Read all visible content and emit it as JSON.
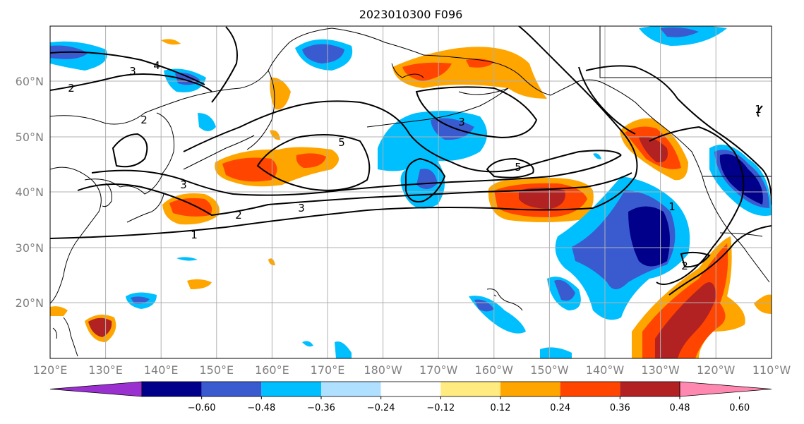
{
  "title": "2023010300 F096",
  "x_ticks": [
    "120°E",
    "130°E",
    "140°E",
    "150°E",
    "160°E",
    "170°E",
    "180°W",
    "170°W",
    "160°W",
    "150°W",
    "140°W",
    "130°W",
    "120°W",
    "110°W"
  ],
  "y_ticks": [
    "60°N",
    "50°N",
    "40°N",
    "30°N",
    "20°N"
  ],
  "colorbar": {
    "labels": [
      "−0.60",
      "−0.48",
      "−0.36",
      "−0.24",
      "−0.12",
      "0.12",
      "0.24",
      "0.36",
      "0.48",
      "0.60"
    ],
    "colors": [
      "#9b30d0",
      "#00008b",
      "#3a5bd0",
      "#00bfff",
      "#b0e0ff",
      "#ffffff",
      "#ffeb80",
      "#ffa500",
      "#ff4500",
      "#b22222",
      "#ff88b0"
    ]
  },
  "contour_labels": [
    "1",
    "2",
    "3",
    "4",
    "5"
  ],
  "colors": {
    "grid": "#b0b0b0",
    "tick_text": "#808080"
  }
}
